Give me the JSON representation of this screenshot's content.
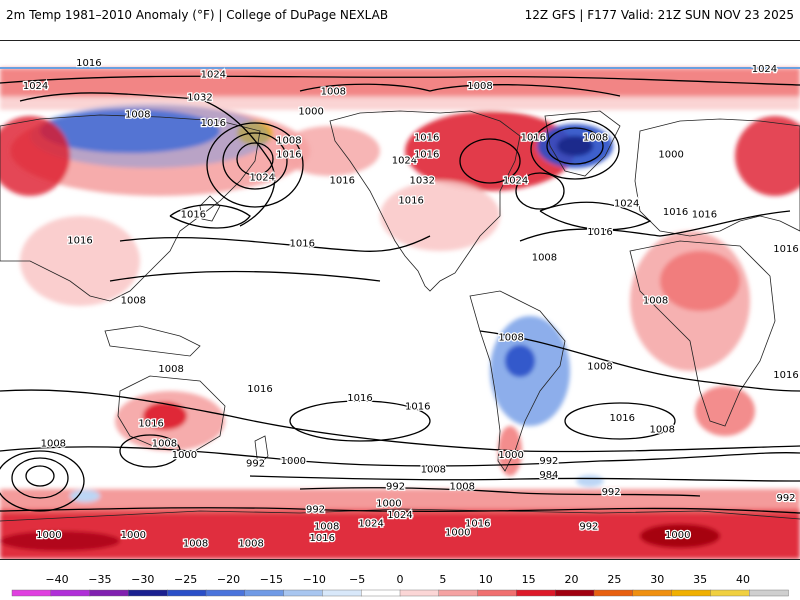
{
  "header": {
    "title": "2m Temp 1981–2010 Anomaly (°F) | College of DuPage NEXLAB",
    "run_info": "12Z GFS | F177 Valid: 21Z SUN NOV 23 2025"
  },
  "colors": {
    "warm_light": "#f9c9c9",
    "warm_mid": "#f07070",
    "warm_strong": "#dd1a2a",
    "warm_extreme": "#a00010",
    "warm_peak": "#f0b000",
    "cold_light": "#bcd6f5",
    "cold_mid": "#6f9ae6",
    "cold_strong": "#2a4fc8",
    "cold_extreme": "#1a2a8c",
    "coast": "#222222",
    "isobar": "#000000"
  },
  "colorbar": {
    "ticks": [
      "−40",
      "−35",
      "−30",
      "−25",
      "−20",
      "−15",
      "−10",
      "−5",
      "0",
      "5",
      "10",
      "15",
      "20",
      "25",
      "30",
      "35",
      "40"
    ],
    "colors": [
      "#e040e0",
      "#b030d8",
      "#8020b0",
      "#1a2090",
      "#2a4fc8",
      "#4a74dc",
      "#6f9ae6",
      "#a8c6f0",
      "#d8e8fa",
      "#ffffff",
      "#fbd6d6",
      "#f5a3a3",
      "#f07070",
      "#dd1a2a",
      "#a00010",
      "#e86010",
      "#f09010",
      "#f0b000",
      "#f0d040",
      "#cfcfcf"
    ]
  },
  "isobar_labels": [
    {
      "text": "1016",
      "lon": 50,
      "lat": 76
    },
    {
      "text": "1024",
      "lon": -6,
      "lat": 74
    },
    {
      "text": "1024",
      "lon": 26,
      "lat": 68
    },
    {
      "text": "1024",
      "lon": 106,
      "lat": 72
    },
    {
      "text": "1008",
      "lon": -134,
      "lat": 68
    },
    {
      "text": "1008",
      "lon": 160,
      "lat": 66
    },
    {
      "text": "1032",
      "lon": 100,
      "lat": 64
    },
    {
      "text": "1008",
      "lon": 72,
      "lat": 58
    },
    {
      "text": "1016",
      "lon": 106,
      "lat": 55
    },
    {
      "text": "1000",
      "lon": 150,
      "lat": 59
    },
    {
      "text": "1008",
      "lon": 140,
      "lat": 49
    },
    {
      "text": "1016",
      "lon": 140,
      "lat": 44
    },
    {
      "text": "1024",
      "lon": 128,
      "lat": 36
    },
    {
      "text": "1016",
      "lon": 164,
      "lat": 35
    },
    {
      "text": "1024",
      "lon": 192,
      "lat": 42
    },
    {
      "text": "1016",
      "lon": -158,
      "lat": 50
    },
    {
      "text": "1016",
      "lon": -110,
      "lat": 50
    },
    {
      "text": "1008",
      "lon": -82,
      "lat": 50
    },
    {
      "text": "1016",
      "lon": -158,
      "lat": 44
    },
    {
      "text": "1032",
      "lon": -160,
      "lat": 35
    },
    {
      "text": "1024",
      "lon": -118,
      "lat": 35
    },
    {
      "text": "1016",
      "lon": -165,
      "lat": 28
    },
    {
      "text": "1000",
      "lon": -48,
      "lat": 44
    },
    {
      "text": "1024",
      "lon": -68,
      "lat": 27
    },
    {
      "text": "1016",
      "lon": -46,
      "lat": 24
    },
    {
      "text": "1016",
      "lon": -33,
      "lat": 23
    },
    {
      "text": "1016",
      "lon": -80,
      "lat": 17
    },
    {
      "text": "1016",
      "lon": 4,
      "lat": 11
    },
    {
      "text": "1016",
      "lon": 46,
      "lat": 14
    },
    {
      "text": "1016",
      "lon": 97,
      "lat": 23
    },
    {
      "text": "1016",
      "lon": 146,
      "lat": 13
    },
    {
      "text": "1008",
      "lon": -105,
      "lat": 8
    },
    {
      "text": "1008",
      "lon": -55,
      "lat": -7
    },
    {
      "text": "1008",
      "lon": -120,
      "lat": -20
    },
    {
      "text": "1008",
      "lon": -80,
      "lat": -30
    },
    {
      "text": "1016",
      "lon": 8,
      "lat": -33
    },
    {
      "text": "1008",
      "lon": 70,
      "lat": -7
    },
    {
      "text": "1008",
      "lon": 87,
      "lat": -31
    },
    {
      "text": "1016",
      "lon": 127,
      "lat": -38
    },
    {
      "text": "1016",
      "lon": -162,
      "lat": -44
    },
    {
      "text": "1016",
      "lon": -70,
      "lat": -48
    },
    {
      "text": "1008",
      "lon": -52,
      "lat": -52
    },
    {
      "text": "1008",
      "lon": 34,
      "lat": -57
    },
    {
      "text": "1016",
      "lon": 78,
      "lat": -50
    },
    {
      "text": "1008",
      "lon": 84,
      "lat": -57
    },
    {
      "text": "1016",
      "lon": 172,
      "lat": -41
    },
    {
      "text": "1000",
      "lon": -120,
      "lat": -61
    },
    {
      "text": "992",
      "lon": -103,
      "lat": -63
    },
    {
      "text": "984",
      "lon": -103,
      "lat": -68
    },
    {
      "text": "1000",
      "lon": 93,
      "lat": -61
    },
    {
      "text": "1000",
      "lon": 142,
      "lat": -63
    },
    {
      "text": "992",
      "lon": 125,
      "lat": -64
    },
    {
      "text": "1008",
      "lon": -155,
      "lat": -66
    },
    {
      "text": "992",
      "lon": -172,
      "lat": -72
    },
    {
      "text": "1008",
      "lon": -142,
      "lat": -72
    },
    {
      "text": "992",
      "lon": -75,
      "lat": -74
    },
    {
      "text": "992",
      "lon": 10,
      "lat": -76
    },
    {
      "text": "1000",
      "lon": -175,
      "lat": -78
    },
    {
      "text": "1024",
      "lon": -170,
      "lat": -82
    },
    {
      "text": "1016",
      "lon": -135,
      "lat": -85
    },
    {
      "text": "1000",
      "lon": -144,
      "lat": -88
    },
    {
      "text": "1000",
      "lon": -45,
      "lat": -89
    },
    {
      "text": "992",
      "lon": -85,
      "lat": -86
    },
    {
      "text": "1000",
      "lon": 32,
      "lat": -89
    },
    {
      "text": "1000",
      "lon": 70,
      "lat": -89
    },
    {
      "text": "1008",
      "lon": 98,
      "lat": -92
    },
    {
      "text": "1008",
      "lon": 123,
      "lat": -92
    },
    {
      "text": "992",
      "lon": 152,
      "lat": -80
    },
    {
      "text": "1008",
      "lon": 157,
      "lat": -86
    },
    {
      "text": "1016",
      "lon": 155,
      "lat": -90
    },
    {
      "text": "1024",
      "lon": 177,
      "lat": -85
    }
  ]
}
